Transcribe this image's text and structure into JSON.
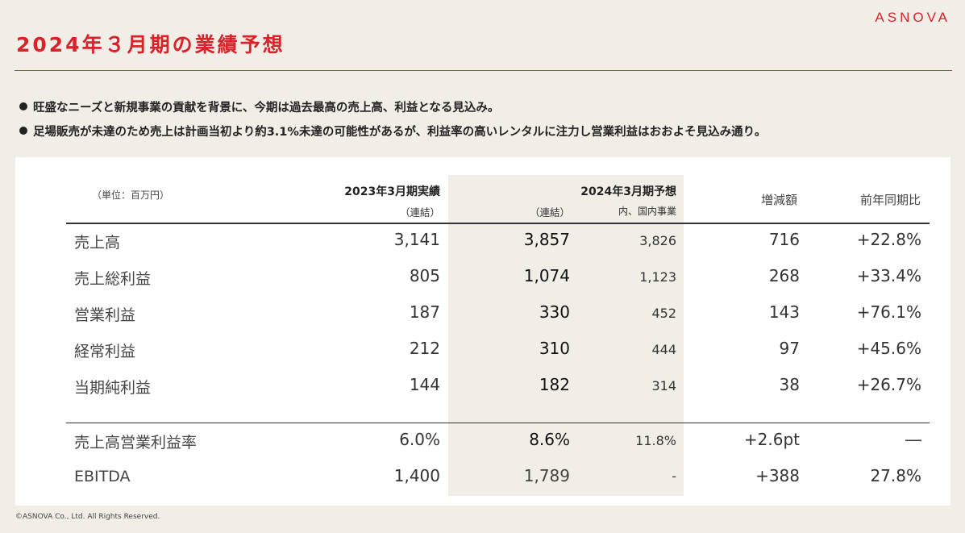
{
  "brand": "ASNOVA",
  "title": "2024年３月期の業績予想",
  "bullets": [
    "旺盛なニーズと新規事業の貢献を背景に、今期は過去最高の売上高、利益となる見込み。",
    "足場販売が未達のため売上は計画当初より約3.1%未達の可能性があるが、利益率の高いレンタルに注力し営業利益はおおよそ見込み通り。"
  ],
  "table": {
    "unit": "（単位：百万円）",
    "col_actual": "2023年3月期実績",
    "col_actual_sub": "（連結）",
    "col_forecast": "2024年3月期予想",
    "col_forecast_sub": "（連結）",
    "col_domestic_sub": "内、国内事業",
    "col_change": "増減額",
    "col_yoy": "前年同期比",
    "rows": [
      {
        "label": "売上高",
        "actual": "3,141",
        "forecast": "3,857",
        "domestic": "3,826",
        "change": "716",
        "yoy": "+22.8%"
      },
      {
        "label": "売上総利益",
        "actual": "805",
        "forecast": "1,074",
        "domestic": "1,123",
        "change": "268",
        "yoy": "+33.4%"
      },
      {
        "label": "営業利益",
        "actual": "187",
        "forecast": "330",
        "domestic": "452",
        "change": "143",
        "yoy": "+76.1%"
      },
      {
        "label": "経常利益",
        "actual": "212",
        "forecast": "310",
        "domestic": "444",
        "change": "97",
        "yoy": "+45.6%"
      },
      {
        "label": "当期純利益",
        "actual": "144",
        "forecast": "182",
        "domestic": "314",
        "change": "38",
        "yoy": "+26.7%"
      },
      {
        "label": "売上高営業利益率",
        "actual": "6.0%",
        "forecast": "8.6%",
        "domestic": "11.8%",
        "change": "+2.6pt",
        "yoy": "―"
      },
      {
        "label": "EBITDA",
        "actual": "1,400",
        "forecast": "1,789",
        "domestic": "-",
        "change": "+388",
        "yoy": "27.8%"
      }
    ]
  },
  "footer": "©ASNOVA Co., Ltd. All Rights Reserved.",
  "colors": {
    "accent": "#d8232a",
    "background": "#f1ede7",
    "shade": "#f1ede7"
  }
}
